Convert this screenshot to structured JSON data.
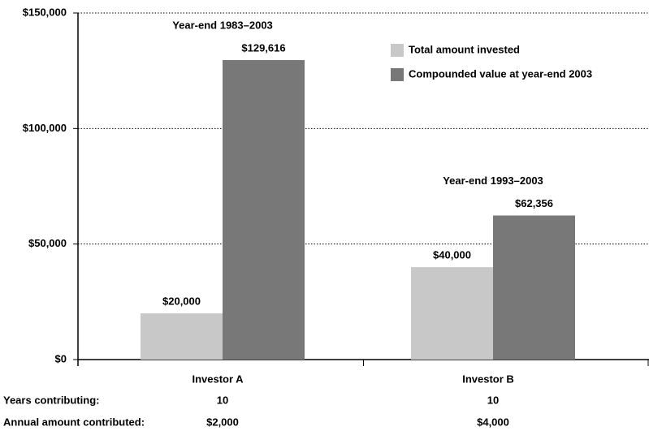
{
  "chart_data": {
    "type": "bar",
    "categories": [
      "Investor A",
      "Investor B"
    ],
    "series": [
      {
        "name": "Total amount invested",
        "color": "#c8c8c8",
        "values": [
          20000,
          40000
        ],
        "value_labels": [
          "$20,000",
          "$40,000"
        ]
      },
      {
        "name": "Compounded value at year-end 2003",
        "color": "#787878",
        "values": [
          129616,
          62356
        ],
        "value_labels": [
          "$129,616",
          "$62,356"
        ]
      }
    ],
    "category_notes": [
      "Year-end 1983–2003",
      "Year-end 1993–2003"
    ],
    "ylim": [
      0,
      150000
    ],
    "yticks": [
      {
        "value": 0,
        "label": "$0"
      },
      {
        "value": 50000,
        "label": "$50,000"
      },
      {
        "value": 100000,
        "label": "$100,000"
      },
      {
        "value": 150000,
        "label": "$150,000"
      }
    ],
    "grid": true,
    "legend": "top-right",
    "rows": [
      {
        "label": "Years contributing:",
        "values": [
          "10",
          "10"
        ]
      },
      {
        "label": "Annual amount contributed:",
        "values": [
          "$2,000",
          "$4,000"
        ]
      }
    ]
  }
}
